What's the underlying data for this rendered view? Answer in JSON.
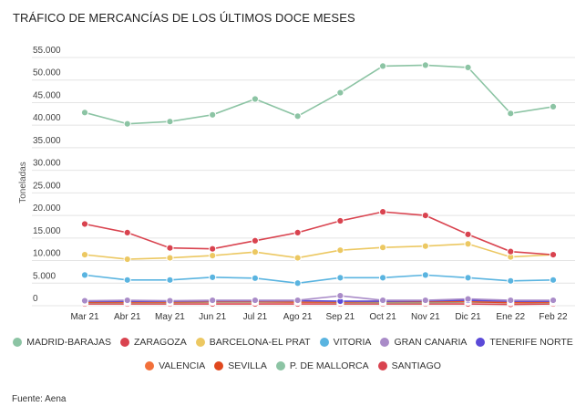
{
  "chart_data": {
    "type": "line",
    "title": "TRÁFICO DE MERCANCÍAS DE LOS ÚLTIMOS DOCE MESES",
    "xlabel": "",
    "ylabel": "Toneladas",
    "ylim": [
      0,
      55000
    ],
    "yticks": [
      0,
      5000,
      10000,
      15000,
      20000,
      25000,
      30000,
      35000,
      40000,
      45000,
      50000,
      55000
    ],
    "ytick_labels": [
      "0",
      "5.000",
      "10.000",
      "15.000",
      "20.000",
      "25.000",
      "30.000",
      "35.000",
      "40.000",
      "45.000",
      "50.000",
      "55.000"
    ],
    "grid": true,
    "legend_position": "bottom",
    "categories": [
      "Mar 21",
      "Abr 21",
      "May 21",
      "Jun 21",
      "Jul 21",
      "Ago 21",
      "Sep 21",
      "Oct 21",
      "Nov 21",
      "Dic 21",
      "Ene 22",
      "Feb 22"
    ],
    "series": [
      {
        "name": "MADRID-BARAJAS",
        "color": "#8cc4a4",
        "values": [
          42800,
          40300,
          40800,
          42300,
          45800,
          42000,
          47200,
          53100,
          53300,
          52800,
          42600,
          44100
        ]
      },
      {
        "name": "ZARAGOZA",
        "color": "#d9434f",
        "values": [
          18100,
          16200,
          12800,
          12600,
          14400,
          16200,
          18800,
          20800,
          20000,
          15800,
          12000,
          11300
        ]
      },
      {
        "name": "BARCELONA-EL PRAT",
        "color": "#ecc862",
        "values": [
          11300,
          10300,
          10600,
          11100,
          11900,
          10600,
          12300,
          12900,
          13200,
          13700,
          10800,
          11300
        ]
      },
      {
        "name": "VITORIA",
        "color": "#5ab4e0",
        "values": [
          6800,
          5700,
          5700,
          6300,
          6100,
          5000,
          6200,
          6200,
          6800,
          6200,
          5500,
          5700
        ]
      },
      {
        "name": "GRAN CANARIA",
        "color": "#a98bc8",
        "values": [
          1100,
          1200,
          1100,
          1200,
          1200,
          1200,
          2200,
          1200,
          1200,
          1500,
          1200,
          1200
        ]
      },
      {
        "name": "TENERIFE NORTE",
        "color": "#5b4ad8",
        "values": [
          1000,
          1000,
          1000,
          1100,
          1100,
          1100,
          1000,
          1000,
          1100,
          1200,
          1000,
          1000
        ]
      },
      {
        "name": "VALENCIA",
        "color": "#f2703a",
        "values": [
          1000,
          900,
          900,
          1000,
          1000,
          900,
          900,
          1000,
          1100,
          1100,
          900,
          900
        ]
      },
      {
        "name": "SEVILLA",
        "color": "#e0481e",
        "values": [
          800,
          800,
          800,
          900,
          900,
          800,
          800,
          900,
          900,
          900,
          700,
          800
        ]
      },
      {
        "name": "P. DE MALLORCA",
        "color": "#8cc4a4",
        "values": [
          700,
          700,
          700,
          800,
          800,
          800,
          700,
          700,
          700,
          800,
          700,
          700
        ]
      },
      {
        "name": "SANTIAGO",
        "color": "#d9434f",
        "values": [
          400,
          400,
          400,
          400,
          400,
          400,
          400,
          400,
          400,
          400,
          300,
          400
        ]
      }
    ]
  },
  "footer": {
    "source": "Fuente: Aena"
  }
}
